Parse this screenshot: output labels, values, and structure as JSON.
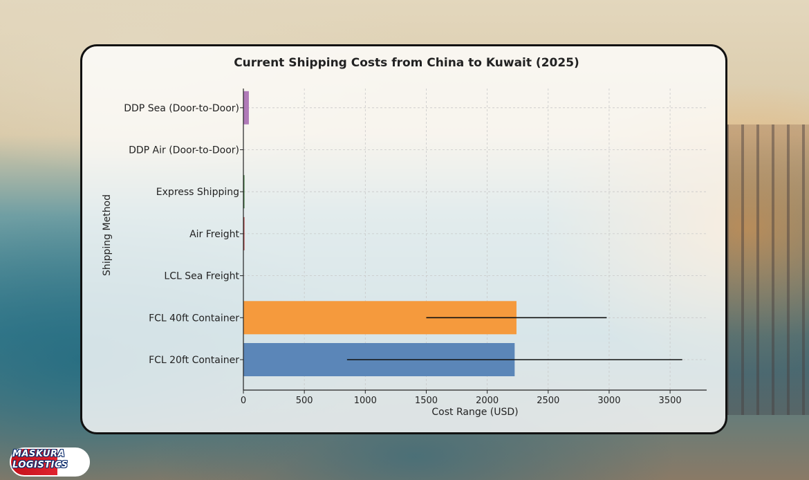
{
  "background": {
    "scene": "port-and-sea-backdrop",
    "colors": {
      "sand": "#e3d7bd",
      "sea": "#3c7f90",
      "sunset": "#f0aa5a"
    }
  },
  "brand": {
    "line1": "MASKURA",
    "line2": "LOGISTICS",
    "colors": {
      "red": "#c3111c",
      "blue": "#0a2a6b"
    }
  },
  "chart_data": {
    "type": "bar",
    "orientation": "horizontal",
    "title": "Current Shipping Costs from China to Kuwait (2025)",
    "xlabel": "Cost Range (USD)",
    "ylabel": "Shipping Method",
    "xlim": [
      0,
      3800
    ],
    "xticks": [
      0,
      500,
      1000,
      1500,
      2000,
      2500,
      3000,
      3500
    ],
    "grid": true,
    "categories": [
      "FCL 20ft Container",
      "FCL 40ft Container",
      "LCL Sea Freight",
      "Air Freight",
      "Express Shipping",
      "DDP Air (Door-to-Door)",
      "DDP Sea (Door-to-Door)"
    ],
    "values": [
      2225,
      2240,
      0,
      4,
      8,
      0,
      45
    ],
    "error_low": [
      850,
      1500,
      null,
      null,
      null,
      null,
      null
    ],
    "error_high": [
      3600,
      2980,
      null,
      null,
      null,
      null,
      null
    ],
    "colors": [
      "#5b86b8",
      "#f59a3d",
      "#cfcfcf",
      "#b33a3a",
      "#3a7a3a",
      "#8d5fa7",
      "#b07ab8"
    ]
  }
}
